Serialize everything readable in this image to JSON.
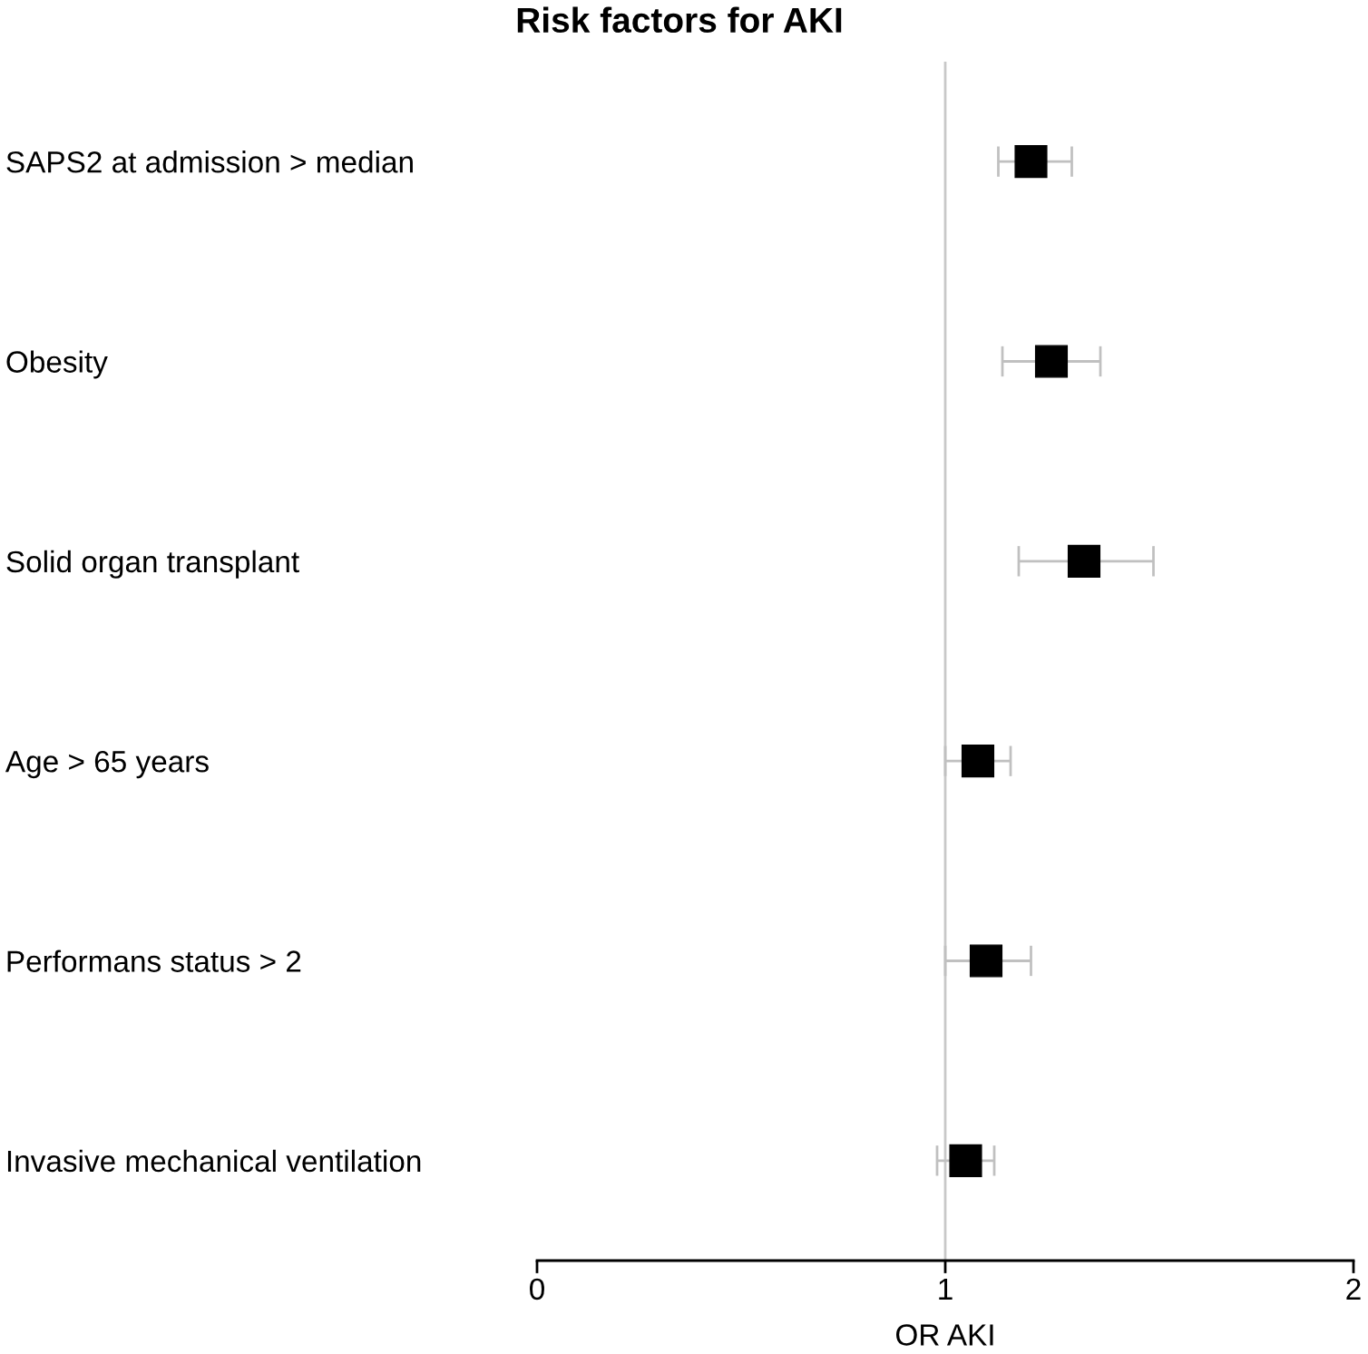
{
  "chart_data": {
    "type": "scatter",
    "orientation": "horizontal",
    "title": "Risk factors for AKI",
    "xlabel": "OR AKI",
    "categories": [
      "SAPS2 at admission > median",
      "Obesity",
      "Solid organ transplant",
      "Age > 65 years",
      "Performans status > 2",
      "Invasive mechanical ventilation"
    ],
    "values": [
      1.21,
      1.26,
      1.34,
      1.08,
      1.1,
      1.05
    ],
    "errors": [
      [
        1.13,
        1.31
      ],
      [
        1.14,
        1.38
      ],
      [
        1.18,
        1.51
      ],
      [
        1.0,
        1.16
      ],
      [
        1.0,
        1.21
      ],
      [
        0.98,
        1.12
      ]
    ],
    "color": "#000000",
    "marker": "square",
    "xlim": [
      0,
      2
    ],
    "xticks": [
      0,
      1,
      2
    ],
    "tick_labels": "xy",
    "ref_lines": [
      {
        "axis": "x",
        "value": 1,
        "color": "#c8c8c8"
      }
    ],
    "grid": false,
    "legend": false
  }
}
